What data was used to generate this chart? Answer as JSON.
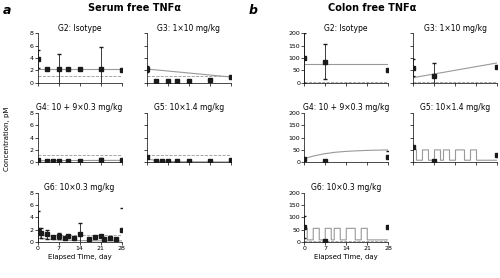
{
  "title_a": "Serum free TNFα",
  "title_b": "Colon free TNFα",
  "label_a": "a",
  "label_b": "b",
  "xlabel": "Elapsed Time, day",
  "ylabel": "Concentration, pM",
  "xticks": [
    0,
    7,
    14,
    21,
    28
  ],
  "serum_lloq": 1.12,
  "colon_lloq": 2.81,
  "serum_ylim": [
    0,
    8
  ],
  "colon_ylim": [
    0,
    200
  ],
  "serum_yticks": [
    0,
    2,
    4,
    6,
    8
  ],
  "colon_yticks": [
    0,
    50,
    100,
    150,
    200
  ],
  "groups": [
    "G2: Isotype",
    "G3: 1×10 mg/kg",
    "G4: 10 + 9×0.3 mg/kg",
    "G5: 10×1.4 mg/kg",
    "G6: 10×0.3 mg/kg"
  ],
  "serum_obs_x": {
    "G2": [
      0,
      3,
      7,
      10,
      14,
      21,
      28
    ],
    "G3": [
      0,
      3,
      7,
      10,
      14,
      21,
      28
    ],
    "G4": [
      0,
      3,
      5,
      7,
      10,
      14,
      21,
      28
    ],
    "G5": [
      0,
      3,
      5,
      7,
      10,
      14,
      21,
      28
    ],
    "G6": [
      0,
      1,
      3,
      5,
      7,
      9,
      10,
      12,
      14,
      17,
      19,
      21,
      22,
      24,
      26,
      28
    ]
  },
  "serum_obs_y": {
    "G2": [
      3.8,
      2.2,
      2.2,
      2.2,
      2.2,
      2.2,
      2.1
    ],
    "G3": [
      2.2,
      0.3,
      0.3,
      0.3,
      0.3,
      0.4,
      0.9
    ],
    "G4": [
      0.3,
      0.2,
      0.2,
      0.2,
      0.2,
      0.2,
      0.4,
      0.3
    ],
    "G5": [
      0.8,
      0.2,
      0.2,
      0.2,
      0.2,
      0.2,
      0.2,
      0.3
    ],
    "G6": [
      2.0,
      1.5,
      1.2,
      0.8,
      1.0,
      0.7,
      0.9,
      0.6,
      1.2,
      0.5,
      0.8,
      0.9,
      0.5,
      0.6,
      0.5,
      2.0
    ]
  },
  "serum_obs_err": {
    "G2": [
      1.5,
      0.0,
      2.5,
      0.0,
      0.0,
      3.5,
      0.0
    ],
    "G3": [
      0.5,
      0.0,
      0.0,
      0.0,
      0.0,
      0.0,
      0.0
    ],
    "G4": [
      0.0,
      0.0,
      0.0,
      0.0,
      0.0,
      0.0,
      0.3,
      0.0
    ],
    "G5": [
      0.0,
      0.0,
      0.0,
      0.0,
      0.0,
      0.0,
      0.0,
      0.0
    ],
    "G6": [
      3.0,
      0.8,
      0.7,
      0.0,
      0.5,
      0.0,
      0.0,
      0.0,
      1.8,
      0.0,
      0.0,
      0.0,
      0.0,
      0.0,
      0.0,
      3.5
    ]
  },
  "serum_fit_x": {
    "G2": [
      0,
      28
    ],
    "G3": [
      0,
      28
    ],
    "G4": [
      0,
      28
    ],
    "G5": [
      0,
      3,
      3.01,
      7,
      7.01,
      10,
      10.01,
      14,
      14.01,
      17,
      17.01,
      21,
      21.01,
      28
    ],
    "G6": [
      0,
      1,
      1.01,
      3,
      3.01,
      5,
      5.01,
      7,
      7.01,
      9,
      9.01,
      10,
      10.01,
      12,
      12.01,
      14,
      14.01,
      17,
      17.01,
      19,
      19.01,
      21,
      21.01,
      28
    ]
  },
  "serum_fit_y": {
    "G2": [
      2.2,
      2.2
    ],
    "G3": [
      2.2,
      0.9
    ],
    "G4": [
      0.25,
      0.3
    ],
    "G5": [
      0.5,
      0.3,
      0.15,
      0.15,
      0.1,
      0.1,
      0.08,
      0.08,
      0.07,
      0.07,
      0.06,
      0.06,
      0.05,
      0.05
    ],
    "G6": [
      1.8,
      1.5,
      0.5,
      0.5,
      0.4,
      0.4,
      0.35,
      0.35,
      0.3,
      0.3,
      0.28,
      0.28,
      0.25,
      0.25,
      0.22,
      0.22,
      0.2,
      0.2,
      0.18,
      0.18,
      0.17,
      0.17,
      0.16,
      0.16
    ]
  },
  "colon_obs_x": {
    "G2": [
      0,
      7,
      28
    ],
    "G3": [
      0,
      7,
      28
    ],
    "G4": [
      0,
      7,
      28
    ],
    "G5": [
      0,
      7,
      28
    ],
    "G6": [
      0,
      7,
      28
    ]
  },
  "colon_obs_y": {
    "G2": [
      100,
      85,
      50
    ],
    "G3": [
      60,
      25,
      65
    ],
    "G4": [
      15,
      5,
      20
    ],
    "G5": [
      60,
      5,
      30
    ],
    "G6": [
      60,
      5,
      60
    ]
  },
  "colon_obs_err": {
    "G2": [
      100,
      70,
      0
    ],
    "G3": [
      35,
      55,
      0
    ],
    "G4": [
      0,
      0,
      25
    ],
    "G5": [
      0,
      0,
      0
    ],
    "G6": [
      45,
      0,
      0
    ]
  },
  "colon_fit_x": {
    "G2": [
      0,
      28
    ],
    "G3": [
      0,
      28
    ],
    "G4": [
      0,
      1,
      1.01,
      3,
      3.01,
      5,
      5.01,
      7,
      7.01,
      9,
      9.01,
      10,
      10.01,
      12,
      12.01,
      14,
      14.01,
      17,
      17.01,
      19,
      19.01,
      21,
      21.01,
      28
    ],
    "G5": [
      0,
      1,
      1.01,
      3,
      3.01,
      5,
      5.01,
      7,
      7.01,
      9,
      9.01,
      10,
      10.01,
      12,
      12.01,
      14,
      14.01,
      17,
      17.01,
      19,
      19.01,
      21,
      21.01,
      28
    ],
    "G6": [
      0,
      1,
      1.01,
      3,
      3.01,
      5,
      5.01,
      7,
      7.01,
      9,
      9.01,
      10,
      10.01,
      12,
      12.01,
      14,
      14.01,
      17,
      17.01,
      19,
      19.01,
      21,
      21.01,
      28
    ]
  },
  "colon_fit_y": {
    "G2": [
      75,
      75
    ],
    "G3": [
      20,
      80
    ],
    "G4": [
      12,
      18,
      18,
      25,
      25,
      30,
      30,
      35,
      35,
      38,
      38,
      40,
      40,
      42,
      42,
      44,
      44,
      46,
      46,
      47,
      47,
      48,
      48,
      50
    ],
    "G5": [
      55,
      50,
      8,
      8,
      50,
      50,
      8,
      8,
      50,
      50,
      8,
      8,
      50,
      50,
      8,
      8,
      50,
      50,
      8,
      8,
      50,
      50,
      8,
      8
    ],
    "G6": [
      55,
      55,
      8,
      8,
      55,
      55,
      8,
      8,
      55,
      55,
      8,
      8,
      55,
      55,
      8,
      8,
      55,
      55,
      8,
      8,
      55,
      55,
      8,
      8
    ]
  },
  "marker_color": "#1a1a1a",
  "line_color": "#999999",
  "lloq_line_color": "#999999",
  "bg_color": "#ffffff",
  "marker_size": 2.5,
  "line_width": 0.8,
  "font_size_title": 5.5,
  "font_size_axis_label": 5.0,
  "font_size_tick": 4.5,
  "font_size_panel_label": 8
}
